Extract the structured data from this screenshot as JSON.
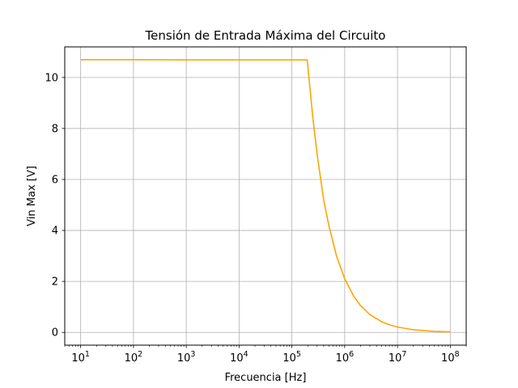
{
  "chart_data": {
    "type": "line",
    "title": "Tensión de Entrada Máxima del Circuito",
    "xlabel": "Frecuencia [Hz]",
    "ylabel": "Vin Max [V]",
    "xscale": "log",
    "xlim": [
      5,
      200000000
    ],
    "ylim": [
      -0.5,
      11.2
    ],
    "grid": true,
    "legend": "none",
    "x_tick_labels": [
      {
        "value": 10,
        "exp": "1"
      },
      {
        "value": 100,
        "exp": "2"
      },
      {
        "value": 1000,
        "exp": "3"
      },
      {
        "value": 10000,
        "exp": "4"
      },
      {
        "value": 100000,
        "exp": "5"
      },
      {
        "value": 1000000,
        "exp": "6"
      },
      {
        "value": 10000000,
        "exp": "7"
      },
      {
        "value": 100000000,
        "exp": "8"
      }
    ],
    "x_tick_base": "10",
    "y_ticks": [
      0,
      2,
      4,
      6,
      8,
      10
    ],
    "series": [
      {
        "color": "#ffa500",
        "points": [
          [
            10,
            10.7
          ],
          [
            100,
            10.7
          ],
          [
            1000,
            10.69
          ],
          [
            10000,
            10.69
          ],
          [
            100000,
            10.69
          ],
          [
            195000,
            10.69
          ],
          [
            250000,
            8.4
          ],
          [
            300000,
            7.0
          ],
          [
            400000,
            5.2
          ],
          [
            500000,
            4.2
          ],
          [
            700000,
            3.0
          ],
          [
            1000000,
            2.1
          ],
          [
            1500000,
            1.4
          ],
          [
            2000000,
            1.05
          ],
          [
            3000000,
            0.7
          ],
          [
            5000000,
            0.42
          ],
          [
            7000000,
            0.3
          ],
          [
            10000000,
            0.21
          ],
          [
            20000000,
            0.105
          ],
          [
            50000000,
            0.042
          ],
          [
            100000000,
            0.021
          ]
        ]
      }
    ]
  }
}
